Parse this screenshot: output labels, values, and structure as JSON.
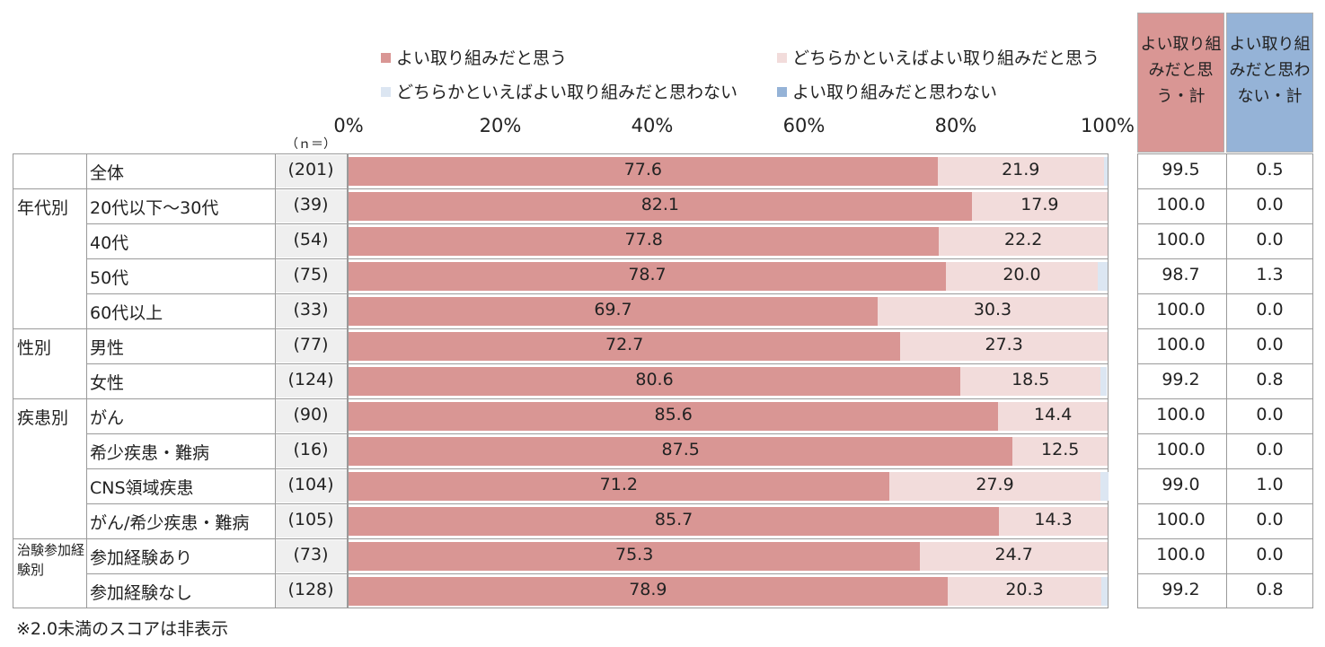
{
  "colors": {
    "good": "#d99694",
    "somewhat_good": "#f2dcdb",
    "somewhat_not_good": "#dce6f2",
    "not_good": "#95b3d7",
    "total_good_header": "#d99694",
    "total_not_good_header": "#95b3d7"
  },
  "n_header": "（ｎ＝）",
  "totals_header": {
    "good": "よい取り組みだと思う・計",
    "not_good": "よい取り組みだと思わない・計"
  },
  "footnote": "※2.0未満のスコアは非表示",
  "chart_data": {
    "type": "bar",
    "orientation": "horizontal",
    "stacked": true,
    "xlim": [
      0,
      100
    ],
    "ticks": [
      "0%",
      "20%",
      "40%",
      "60%",
      "80%",
      "100%"
    ],
    "legend": [
      "よい取り組みだと思う",
      "どちらかといえばよい取り組みだと思う",
      "どちらかといえばよい取り組みだと思わない",
      "よい取り組みだと思わない"
    ],
    "hide_label_below": 2.0,
    "rows": [
      {
        "group": "",
        "label": "全体",
        "n": "(201)",
        "values": [
          77.6,
          21.9,
          0.5,
          0
        ],
        "good_total": "99.5",
        "not_good_total": "0.5"
      },
      {
        "group": "年代別",
        "label": "20代以下～30代",
        "n": "(39)",
        "values": [
          82.1,
          17.9,
          0,
          0
        ],
        "good_total": "100.0",
        "not_good_total": "0.0"
      },
      {
        "group": "",
        "label": "40代",
        "n": "(54)",
        "values": [
          77.8,
          22.2,
          0,
          0
        ],
        "good_total": "100.0",
        "not_good_total": "0.0"
      },
      {
        "group": "",
        "label": "50代",
        "n": "(75)",
        "values": [
          78.7,
          20.0,
          1.3,
          0
        ],
        "good_total": "98.7",
        "not_good_total": "1.3"
      },
      {
        "group": "",
        "label": "60代以上",
        "n": "(33)",
        "values": [
          69.7,
          30.3,
          0,
          0
        ],
        "good_total": "100.0",
        "not_good_total": "0.0"
      },
      {
        "group": "性別",
        "label": "男性",
        "n": "(77)",
        "values": [
          72.7,
          27.3,
          0,
          0
        ],
        "good_total": "100.0",
        "not_good_total": "0.0"
      },
      {
        "group": "",
        "label": "女性",
        "n": "(124)",
        "values": [
          80.6,
          18.5,
          0.8,
          0
        ],
        "good_total": "99.2",
        "not_good_total": "0.8"
      },
      {
        "group": "疾患別",
        "label": "がん",
        "n": "(90)",
        "values": [
          85.6,
          14.4,
          0,
          0
        ],
        "good_total": "100.0",
        "not_good_total": "0.0"
      },
      {
        "group": "",
        "label": "希少疾患・難病",
        "n": "(16)",
        "values": [
          87.5,
          12.5,
          0,
          0
        ],
        "good_total": "100.0",
        "not_good_total": "0.0"
      },
      {
        "group": "",
        "label": "CNS領域疾患",
        "n": "(104)",
        "values": [
          71.2,
          27.9,
          1.0,
          0
        ],
        "good_total": "99.0",
        "not_good_total": "1.0"
      },
      {
        "group": "",
        "label": "がん/希少疾患・難病",
        "n": "(105)",
        "values": [
          85.7,
          14.3,
          0,
          0
        ],
        "good_total": "100.0",
        "not_good_total": "0.0"
      },
      {
        "group": "治験参加経験別",
        "label": "参加経験あり",
        "n": "(73)",
        "values": [
          75.3,
          24.7,
          0,
          0
        ],
        "good_total": "100.0",
        "not_good_total": "0.0"
      },
      {
        "group": "",
        "label": "参加経験なし",
        "n": "(128)",
        "values": [
          78.9,
          20.3,
          0.8,
          0
        ],
        "good_total": "99.2",
        "not_good_total": "0.8"
      }
    ]
  }
}
